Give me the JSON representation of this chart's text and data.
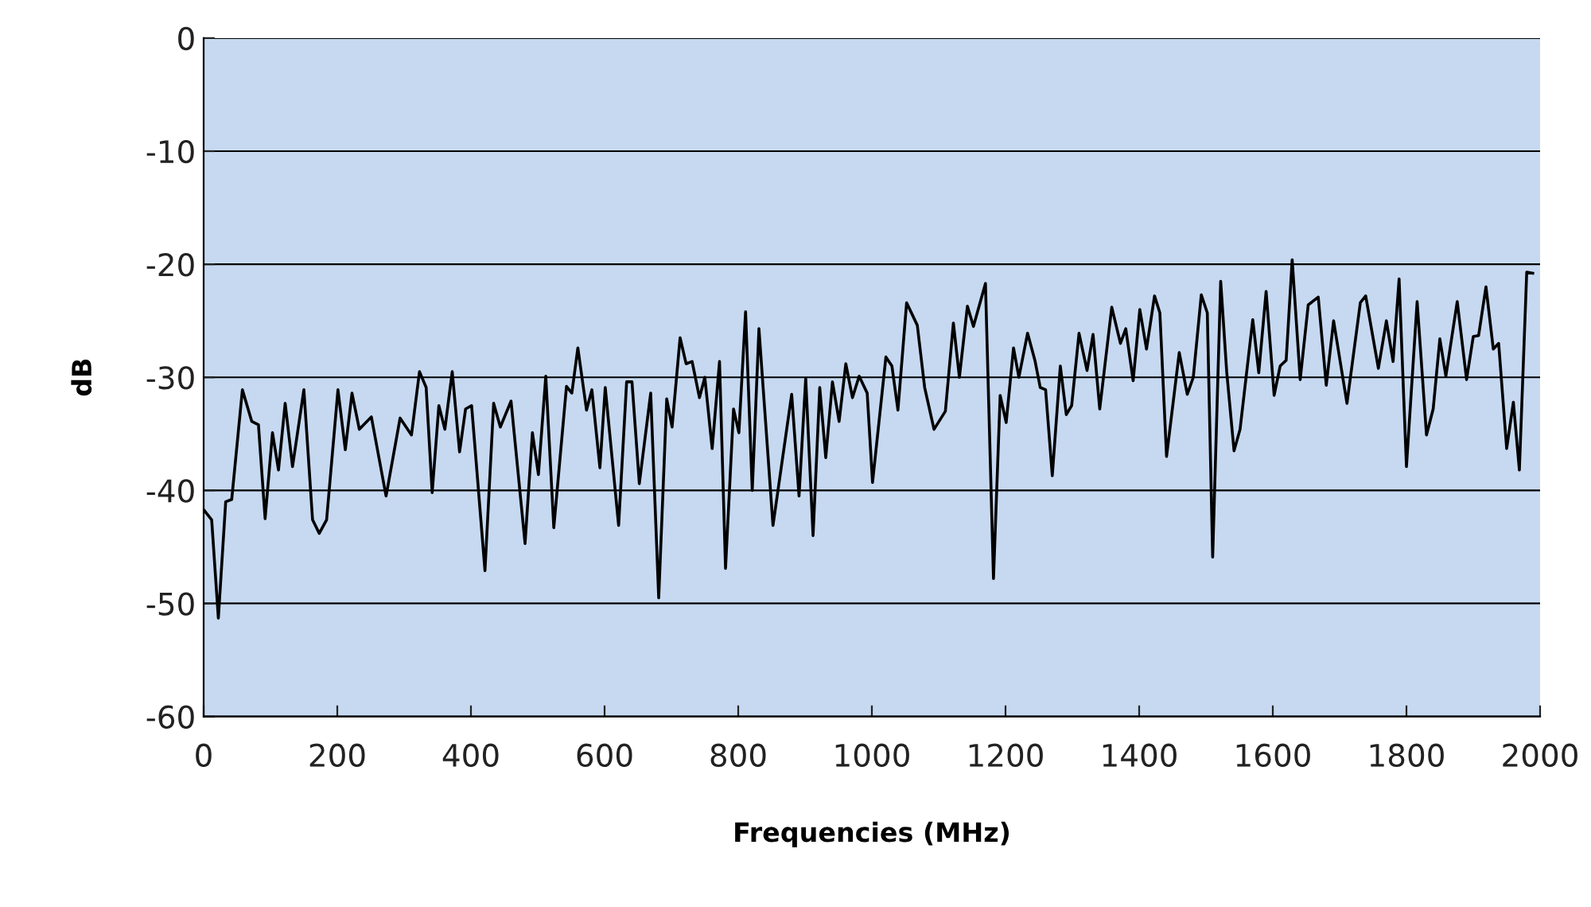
{
  "chart_data": {
    "type": "line",
    "xlabel": "Frequencies (MHz)",
    "ylabel": "dB",
    "xlim": [
      0,
      2000
    ],
    "xticks": [
      0,
      200,
      400,
      600,
      800,
      1000,
      1200,
      1400,
      1600,
      1800,
      2000
    ],
    "ylim": [
      -60,
      0
    ],
    "yticks": [
      -60,
      -50,
      -40,
      -30,
      -20,
      -10,
      0
    ],
    "grid": "y",
    "legend": false,
    "marker": "none",
    "line_style": "solid",
    "series": [
      {
        "color": "#000000",
        "x": [
          0,
          12,
          22,
          33,
          42,
          58,
          72,
          82,
          92,
          103,
          112,
          122,
          133,
          150,
          163,
          173,
          184,
          201,
          212,
          222,
          233,
          251,
          273,
          294,
          311,
          323,
          333,
          342,
          352,
          361,
          372,
          383,
          392,
          401,
          421,
          434,
          444,
          460,
          481,
          492,
          501,
          512,
          524,
          543,
          551,
          560,
          573,
          581,
          593,
          601,
          621,
          633,
          641,
          652,
          669,
          681,
          693,
          701,
          713,
          722,
          731,
          742,
          750,
          761,
          772,
          781,
          793,
          801,
          811,
          821,
          831,
          852,
          880,
          891,
          901,
          912,
          922,
          931,
          941,
          951,
          961,
          971,
          981,
          993,
          1001,
          1021,
          1030,
          1039,
          1052,
          1068,
          1079,
          1093,
          1110,
          1122,
          1131,
          1143,
          1152,
          1170,
          1182,
          1192,
          1201,
          1212,
          1220,
          1233,
          1244,
          1252,
          1260,
          1270,
          1282,
          1291,
          1299,
          1310,
          1322,
          1331,
          1341,
          1359,
          1372,
          1380,
          1391,
          1401,
          1411,
          1423,
          1431,
          1441,
          1460,
          1472,
          1481,
          1493,
          1502,
          1510,
          1522,
          1531,
          1542,
          1551,
          1570,
          1579,
          1590,
          1602,
          1611,
          1620,
          1629,
          1641,
          1653,
          1668,
          1680,
          1691,
          1711,
          1731,
          1739,
          1758,
          1770,
          1780,
          1789,
          1800,
          1816,
          1830,
          1840,
          1850,
          1859,
          1876,
          1890,
          1900,
          1908,
          1919,
          1930,
          1938,
          1950,
          1960,
          1969,
          1980,
          1989
        ],
        "values": [
          -41.7,
          -42.6,
          -51.3,
          -41,
          -40.8,
          -31.1,
          -33.9,
          -34.2,
          -42.5,
          -34.9,
          -38.2,
          -32.3,
          -37.9,
          -31.1,
          -42.6,
          -43.8,
          -42.6,
          -31.1,
          -36.4,
          -31.4,
          -34.6,
          -33.5,
          -40.5,
          -33.6,
          -35.1,
          -29.5,
          -30.9,
          -40.2,
          -32.5,
          -34.6,
          -29.5,
          -36.6,
          -32.8,
          -32.5,
          -47.1,
          -32.3,
          -34.4,
          -32.1,
          -44.7,
          -34.9,
          -38.6,
          -29.9,
          -43.3,
          -30.8,
          -31.4,
          -27.4,
          -32.9,
          -31.1,
          -38,
          -30.9,
          -43.1,
          -30.4,
          -30.4,
          -39.4,
          -31.4,
          -49.5,
          -31.9,
          -34.4,
          -26.5,
          -28.8,
          -28.6,
          -31.8,
          -30,
          -36.3,
          -28.6,
          -46.9,
          -32.8,
          -34.9,
          -24.2,
          -40,
          -25.7,
          -43.1,
          -31.5,
          -40.5,
          -30.1,
          -44,
          -30.9,
          -37.1,
          -30.4,
          -33.9,
          -28.8,
          -31.8,
          -29.9,
          -31.4,
          -39.3,
          -28.2,
          -29,
          -32.9,
          -23.4,
          -25.4,
          -30.9,
          -34.6,
          -33,
          -25.2,
          -30,
          -23.7,
          -25.5,
          -21.7,
          -47.8,
          -31.6,
          -34,
          -27.4,
          -30,
          -26.1,
          -28.5,
          -30.9,
          -31.1,
          -38.7,
          -29,
          -33.3,
          -32.5,
          -26.1,
          -29.4,
          -26.2,
          -32.8,
          -23.8,
          -27,
          -25.7,
          -30.3,
          -24,
          -27.5,
          -22.8,
          -24.3,
          -37,
          -27.8,
          -31.5,
          -30,
          -22.7,
          -24.3,
          -45.9,
          -21.5,
          -29.5,
          -36.5,
          -34.6,
          -24.9,
          -29.6,
          -22.4,
          -31.6,
          -29,
          -28.5,
          -19.6,
          -30.2,
          -23.6,
          -22.9,
          -30.7,
          -25,
          -32.3,
          -23.4,
          -22.8,
          -29.2,
          -25,
          -28.6,
          -21.3,
          -37.9,
          -23.3,
          -35.1,
          -32.8,
          -26.6,
          -29.9,
          -23.3,
          -30.2,
          -26.4,
          -26.3,
          -22,
          -27.5,
          -27,
          -36.3,
          -32.2,
          -38.2,
          -20.7,
          -20.8
        ]
      }
    ]
  }
}
